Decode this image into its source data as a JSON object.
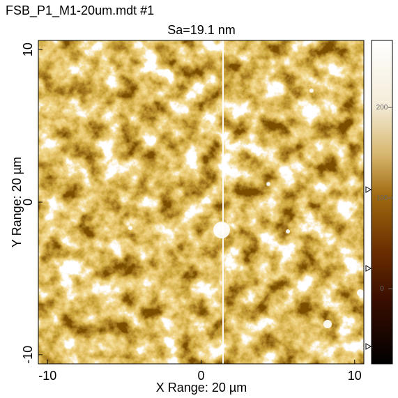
{
  "chart_data": {
    "type": "image",
    "title": "FSB_P1_M1-20um.mdt #1",
    "subtitle": "Sa=19.1 nm",
    "x_label": "X Range: 20 µm",
    "y_label": "Y Range: 20 µm",
    "xlim": [
      -10.6,
      10.6
    ],
    "xticks": [
      -10,
      0,
      10
    ],
    "ylim": [
      -10.6,
      10.6
    ],
    "yticks": [
      -10,
      0,
      10
    ],
    "colorbar": {
      "lim": [
        -83,
        274
      ],
      "ticks": [
        0,
        100,
        200
      ]
    }
  }
}
